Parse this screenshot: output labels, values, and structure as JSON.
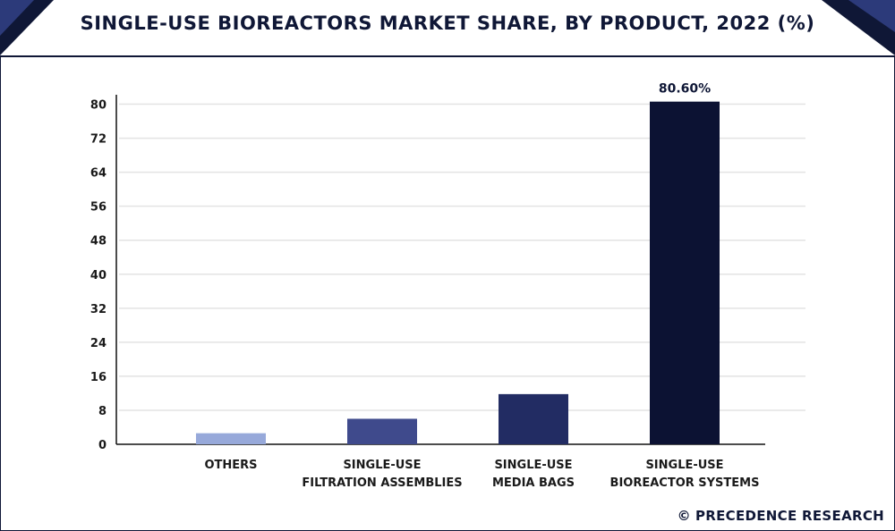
{
  "header": {
    "title": "SINGLE-USE BIOREACTORS MARKET SHARE, BY PRODUCT, 2022 (%)"
  },
  "footer": {
    "copyright_symbol": "©",
    "credit": "PRECEDENCE RESEARCH"
  },
  "colors": {
    "navy": "#0f1736",
    "others": "#97a9da",
    "filtration": "#3f4a8c",
    "media_bags": "#222c63",
    "systems": "#0c1233",
    "grid": "#e3e3e3"
  },
  "chart_data": {
    "type": "bar",
    "title": "SINGLE-USE BIOREACTORS MARKET SHARE, BY PRODUCT, 2022 (%)",
    "xlabel": "",
    "ylabel": "",
    "ylim": [
      0,
      86
    ],
    "yticks": [
      "0",
      "8",
      "16",
      "24",
      "32",
      "40",
      "48",
      "56",
      "64",
      "72",
      "80"
    ],
    "grid": true,
    "categories": [
      [
        "OTHERS"
      ],
      [
        "SINGLE-USE",
        "FILTRATION ASSEMBLIES"
      ],
      [
        "SINGLE-USE",
        "MEDIA BAGS"
      ],
      [
        "SINGLE-USE",
        "BIOREACTOR SYSTEMS"
      ]
    ],
    "values": [
      2.6,
      6.0,
      11.8,
      80.6
    ],
    "data_labels": [
      "",
      "",
      "",
      "80.60%"
    ],
    "bar_colors": [
      "#97a9da",
      "#3f4a8c",
      "#222c63",
      "#0c1233"
    ]
  }
}
